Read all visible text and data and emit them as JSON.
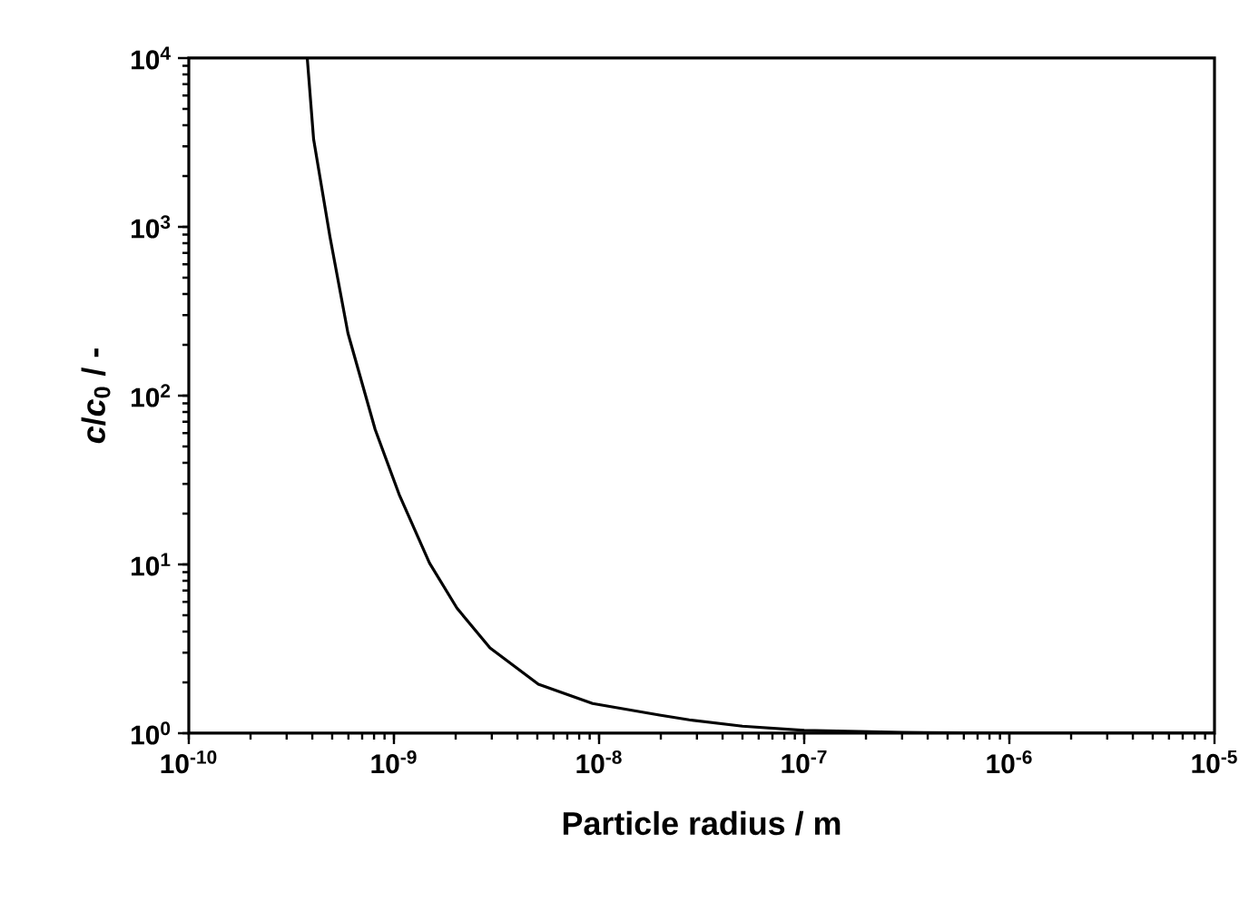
{
  "chart_data": {
    "type": "line",
    "xlabel": "Particle radius / m",
    "ylabel": "*c*/*c*$_{0}$ / -",
    "log": "xy",
    "xlim": [
      1e-10,
      1e-05
    ],
    "ylim": [
      1,
      10000
    ],
    "xticks": [
      {
        "value": 1e-10,
        "label": "10$^{-10}$"
      },
      {
        "value": 1e-09,
        "label": "10$^{-9}$"
      },
      {
        "value": 1e-08,
        "label": "10$^{-8}$"
      },
      {
        "value": 1e-07,
        "label": "10$^{-7}$"
      },
      {
        "value": 1e-06,
        "label": "10$^{-6}$"
      },
      {
        "value": 1e-05,
        "label": "10$^{-5}$"
      }
    ],
    "yticks": [
      {
        "value": 1,
        "label": "10$^{0}$"
      },
      {
        "value": 10,
        "label": "10$^{1}$"
      },
      {
        "value": 100,
        "label": "10$^{2}$"
      },
      {
        "value": 1000,
        "label": "10$^{3}$"
      },
      {
        "value": 10000,
        "label": "10$^{4}$"
      }
    ],
    "series": [
      {
        "color": "#000000",
        "x": [
          3.78e-10,
          4.06e-10,
          4.88e-10,
          5.97e-10,
          8.1e-10,
          1.06e-09,
          1.49e-09,
          2.03e-09,
          2.94e-09,
          5.06e-09,
          9.3e-09,
          1.97e-08,
          2.75e-08,
          5e-08,
          1e-07,
          3e-07,
          1e-06,
          1e-05
        ],
        "values": [
          10000,
          3300,
          870,
          234,
          63,
          26,
          10.2,
          5.5,
          3.2,
          1.95,
          1.5,
          1.28,
          1.2,
          1.1,
          1.04,
          1.01,
          1.0,
          1.0
        ]
      }
    ]
  }
}
